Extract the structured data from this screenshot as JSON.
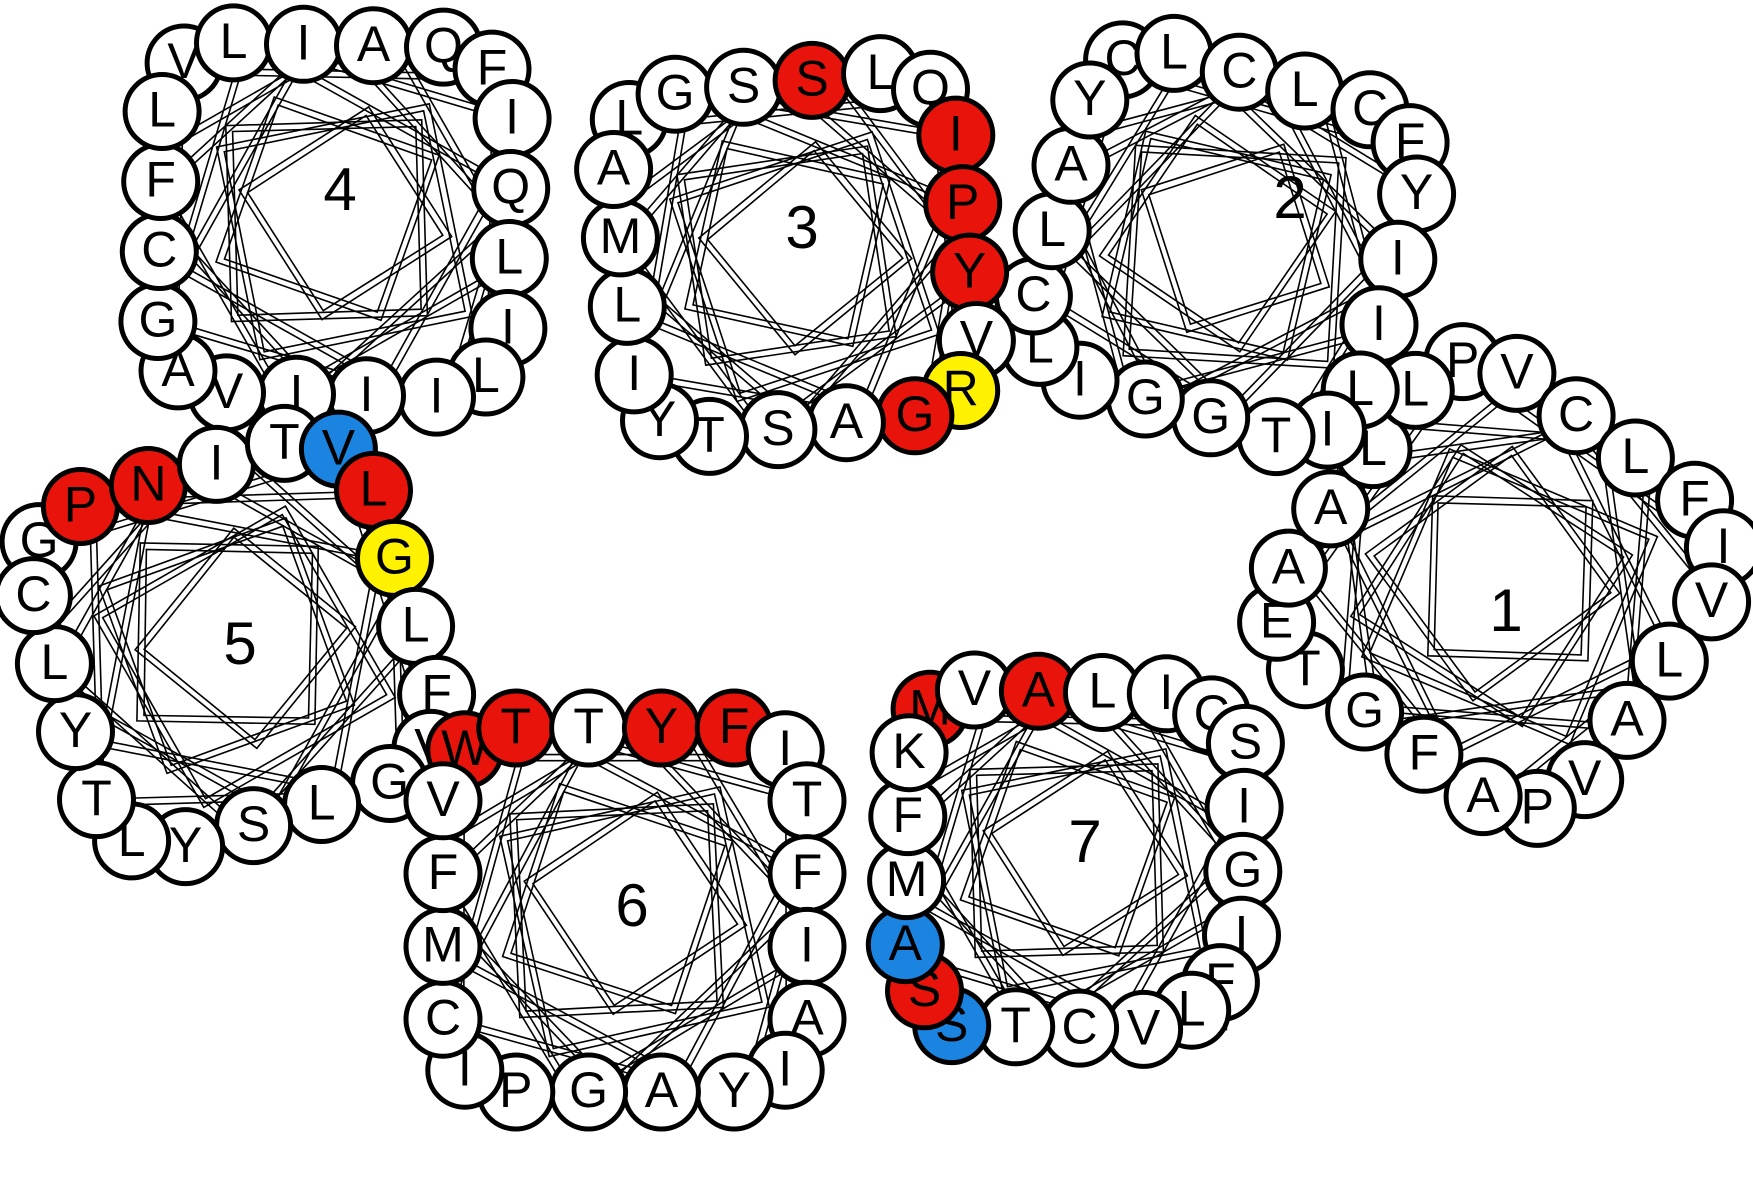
{
  "diagram": {
    "palette": {
      "default": "#ffffff",
      "red": "#e8140c",
      "yellow": "#fff200",
      "blue": "#1b83e0"
    },
    "helices": [
      {
        "label": "1",
        "residues": [
          {
            "letter": "P",
            "color": "default"
          },
          {
            "letter": "V",
            "color": "default"
          },
          {
            "letter": "C",
            "color": "default"
          },
          {
            "letter": "L",
            "color": "default"
          },
          {
            "letter": "F",
            "color": "default"
          },
          {
            "letter": "I",
            "color": "default"
          },
          {
            "letter": "V",
            "color": "default"
          },
          {
            "letter": "L",
            "color": "default"
          },
          {
            "letter": "A",
            "color": "default"
          },
          {
            "letter": "V",
            "color": "default"
          },
          {
            "letter": "P",
            "color": "default"
          },
          {
            "letter": "A",
            "color": "default"
          },
          {
            "letter": "F",
            "color": "default"
          },
          {
            "letter": "G",
            "color": "default"
          },
          {
            "letter": "T",
            "color": "default"
          },
          {
            "letter": "E",
            "color": "default"
          },
          {
            "letter": "A",
            "color": "default"
          },
          {
            "letter": "A",
            "color": "default"
          },
          {
            "letter": "L",
            "color": "default"
          },
          {
            "letter": "L",
            "color": "default"
          }
        ]
      },
      {
        "label": "2",
        "residues": [
          {
            "letter": "C",
            "color": "default"
          },
          {
            "letter": "L",
            "color": "default"
          },
          {
            "letter": "C",
            "color": "default"
          },
          {
            "letter": "L",
            "color": "default"
          },
          {
            "letter": "C",
            "color": "default"
          },
          {
            "letter": "F",
            "color": "default"
          },
          {
            "letter": "Y",
            "color": "default"
          },
          {
            "letter": "I",
            "color": "default"
          },
          {
            "letter": "I",
            "color": "default"
          },
          {
            "letter": "L",
            "color": "default"
          },
          {
            "letter": "I",
            "color": "default"
          },
          {
            "letter": "T",
            "color": "default"
          },
          {
            "letter": "G",
            "color": "default"
          },
          {
            "letter": "G",
            "color": "default"
          },
          {
            "letter": "I",
            "color": "default"
          },
          {
            "letter": "L",
            "color": "default"
          },
          {
            "letter": "C",
            "color": "default"
          },
          {
            "letter": "L",
            "color": "default"
          },
          {
            "letter": "A",
            "color": "default"
          },
          {
            "letter": "Y",
            "color": "default"
          }
        ]
      },
      {
        "label": "3",
        "residues": [
          {
            "letter": "L",
            "color": "default"
          },
          {
            "letter": "G",
            "color": "default"
          },
          {
            "letter": "S",
            "color": "default"
          },
          {
            "letter": "S",
            "color": "red"
          },
          {
            "letter": "L",
            "color": "default"
          },
          {
            "letter": "Q",
            "color": "default"
          },
          {
            "letter": "I",
            "color": "red"
          },
          {
            "letter": "P",
            "color": "red"
          },
          {
            "letter": "Y",
            "color": "red"
          },
          {
            "letter": "V",
            "color": "default"
          },
          {
            "letter": "R",
            "color": "yellow"
          },
          {
            "letter": "G",
            "color": "red"
          },
          {
            "letter": "A",
            "color": "default"
          },
          {
            "letter": "S",
            "color": "default"
          },
          {
            "letter": "T",
            "color": "default"
          },
          {
            "letter": "Y",
            "color": "default"
          },
          {
            "letter": "I",
            "color": "default"
          },
          {
            "letter": "L",
            "color": "default"
          },
          {
            "letter": "M",
            "color": "default"
          },
          {
            "letter": "A",
            "color": "default"
          }
        ]
      },
      {
        "label": "4",
        "residues": [
          {
            "letter": "V",
            "color": "default"
          },
          {
            "letter": "L",
            "color": "default"
          },
          {
            "letter": "I",
            "color": "default"
          },
          {
            "letter": "A",
            "color": "default"
          },
          {
            "letter": "Q",
            "color": "default"
          },
          {
            "letter": "F",
            "color": "default"
          },
          {
            "letter": "I",
            "color": "default"
          },
          {
            "letter": "Q",
            "color": "default"
          },
          {
            "letter": "L",
            "color": "default"
          },
          {
            "letter": "I",
            "color": "default"
          },
          {
            "letter": "L",
            "color": "default"
          },
          {
            "letter": "I",
            "color": "default"
          },
          {
            "letter": "I",
            "color": "default"
          },
          {
            "letter": "I",
            "color": "default"
          },
          {
            "letter": "V",
            "color": "default"
          },
          {
            "letter": "A",
            "color": "default"
          },
          {
            "letter": "G",
            "color": "default"
          },
          {
            "letter": "C",
            "color": "default"
          },
          {
            "letter": "F",
            "color": "default"
          },
          {
            "letter": "L",
            "color": "default"
          }
        ]
      },
      {
        "label": "5",
        "residues": [
          {
            "letter": "G",
            "color": "default"
          },
          {
            "letter": "P",
            "color": "red"
          },
          {
            "letter": "N",
            "color": "red"
          },
          {
            "letter": "I",
            "color": "default"
          },
          {
            "letter": "T",
            "color": "default"
          },
          {
            "letter": "V",
            "color": "blue"
          },
          {
            "letter": "L",
            "color": "red"
          },
          {
            "letter": "G",
            "color": "yellow"
          },
          {
            "letter": "L",
            "color": "default"
          },
          {
            "letter": "F",
            "color": "default"
          },
          {
            "letter": "V",
            "color": "default"
          },
          {
            "letter": "G",
            "color": "default"
          },
          {
            "letter": "L",
            "color": "default"
          },
          {
            "letter": "S",
            "color": "default"
          },
          {
            "letter": "Y",
            "color": "default"
          },
          {
            "letter": "L",
            "color": "default"
          },
          {
            "letter": "T",
            "color": "default"
          },
          {
            "letter": "Y",
            "color": "default"
          },
          {
            "letter": "L",
            "color": "default"
          },
          {
            "letter": "C",
            "color": "default"
          }
        ]
      },
      {
        "label": "6",
        "residues": [
          {
            "letter": "W",
            "color": "red"
          },
          {
            "letter": "T",
            "color": "red"
          },
          {
            "letter": "T",
            "color": "default"
          },
          {
            "letter": "Y",
            "color": "red"
          },
          {
            "letter": "F",
            "color": "red"
          },
          {
            "letter": "I",
            "color": "default"
          },
          {
            "letter": "T",
            "color": "default"
          },
          {
            "letter": "F",
            "color": "default"
          },
          {
            "letter": "I",
            "color": "default"
          },
          {
            "letter": "A",
            "color": "default"
          },
          {
            "letter": "I",
            "color": "default"
          },
          {
            "letter": "Y",
            "color": "default"
          },
          {
            "letter": "A",
            "color": "default"
          },
          {
            "letter": "G",
            "color": "default"
          },
          {
            "letter": "P",
            "color": "default"
          },
          {
            "letter": "I",
            "color": "default"
          },
          {
            "letter": "C",
            "color": "default"
          },
          {
            "letter": "M",
            "color": "default"
          },
          {
            "letter": "F",
            "color": "default"
          },
          {
            "letter": "V",
            "color": "default"
          }
        ]
      },
      {
        "label": "7",
        "residues": [
          {
            "letter": "M",
            "color": "red"
          },
          {
            "letter": "V",
            "color": "default"
          },
          {
            "letter": "A",
            "color": "red"
          },
          {
            "letter": "L",
            "color": "default"
          },
          {
            "letter": "I",
            "color": "default"
          },
          {
            "letter": "C",
            "color": "default"
          },
          {
            "letter": "S",
            "color": "default"
          },
          {
            "letter": "I",
            "color": "default"
          },
          {
            "letter": "G",
            "color": "default"
          },
          {
            "letter": "I",
            "color": "default"
          },
          {
            "letter": "F",
            "color": "default"
          },
          {
            "letter": "L",
            "color": "default"
          },
          {
            "letter": "V",
            "color": "default"
          },
          {
            "letter": "C",
            "color": "default"
          },
          {
            "letter": "T",
            "color": "default"
          },
          {
            "letter": "S",
            "color": "blue"
          },
          {
            "letter": "S",
            "color": "red"
          },
          {
            "letter": "A",
            "color": "blue"
          },
          {
            "letter": "M",
            "color": "default"
          },
          {
            "letter": "F",
            "color": "default"
          },
          {
            "letter": "K",
            "color": "default"
          }
        ]
      }
    ]
  }
}
